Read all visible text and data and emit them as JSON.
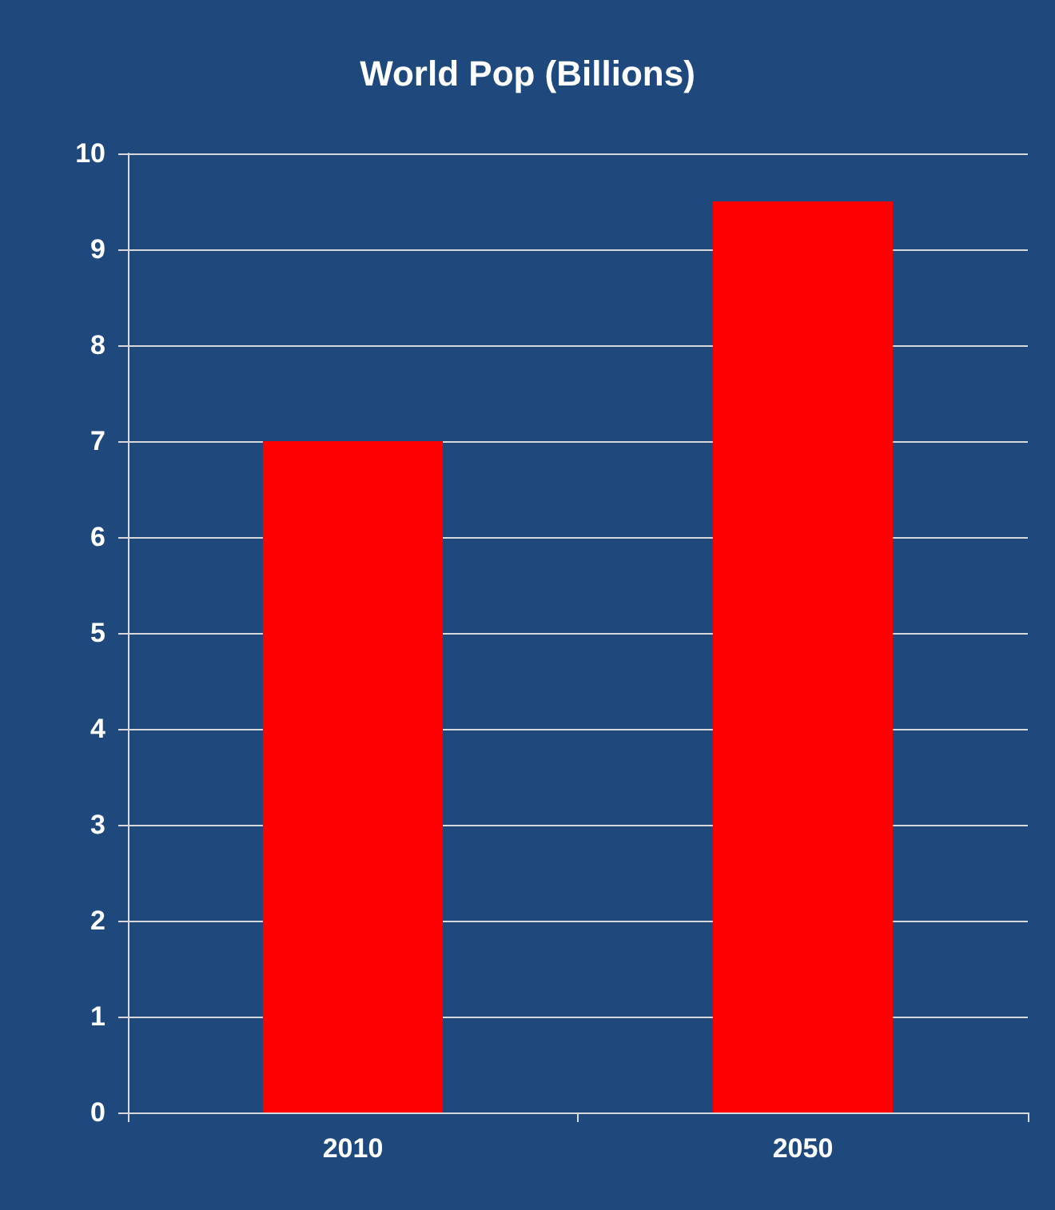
{
  "chart_data": {
    "type": "bar",
    "title": "World Pop (Billions)",
    "categories": [
      "2010",
      "2050"
    ],
    "values": [
      7.0,
      9.5
    ],
    "color": "#ff0000",
    "ylim": [
      0,
      10
    ],
    "yticks": [
      0,
      1,
      2,
      3,
      4,
      5,
      6,
      7,
      8,
      9,
      10
    ],
    "grid": "y"
  }
}
